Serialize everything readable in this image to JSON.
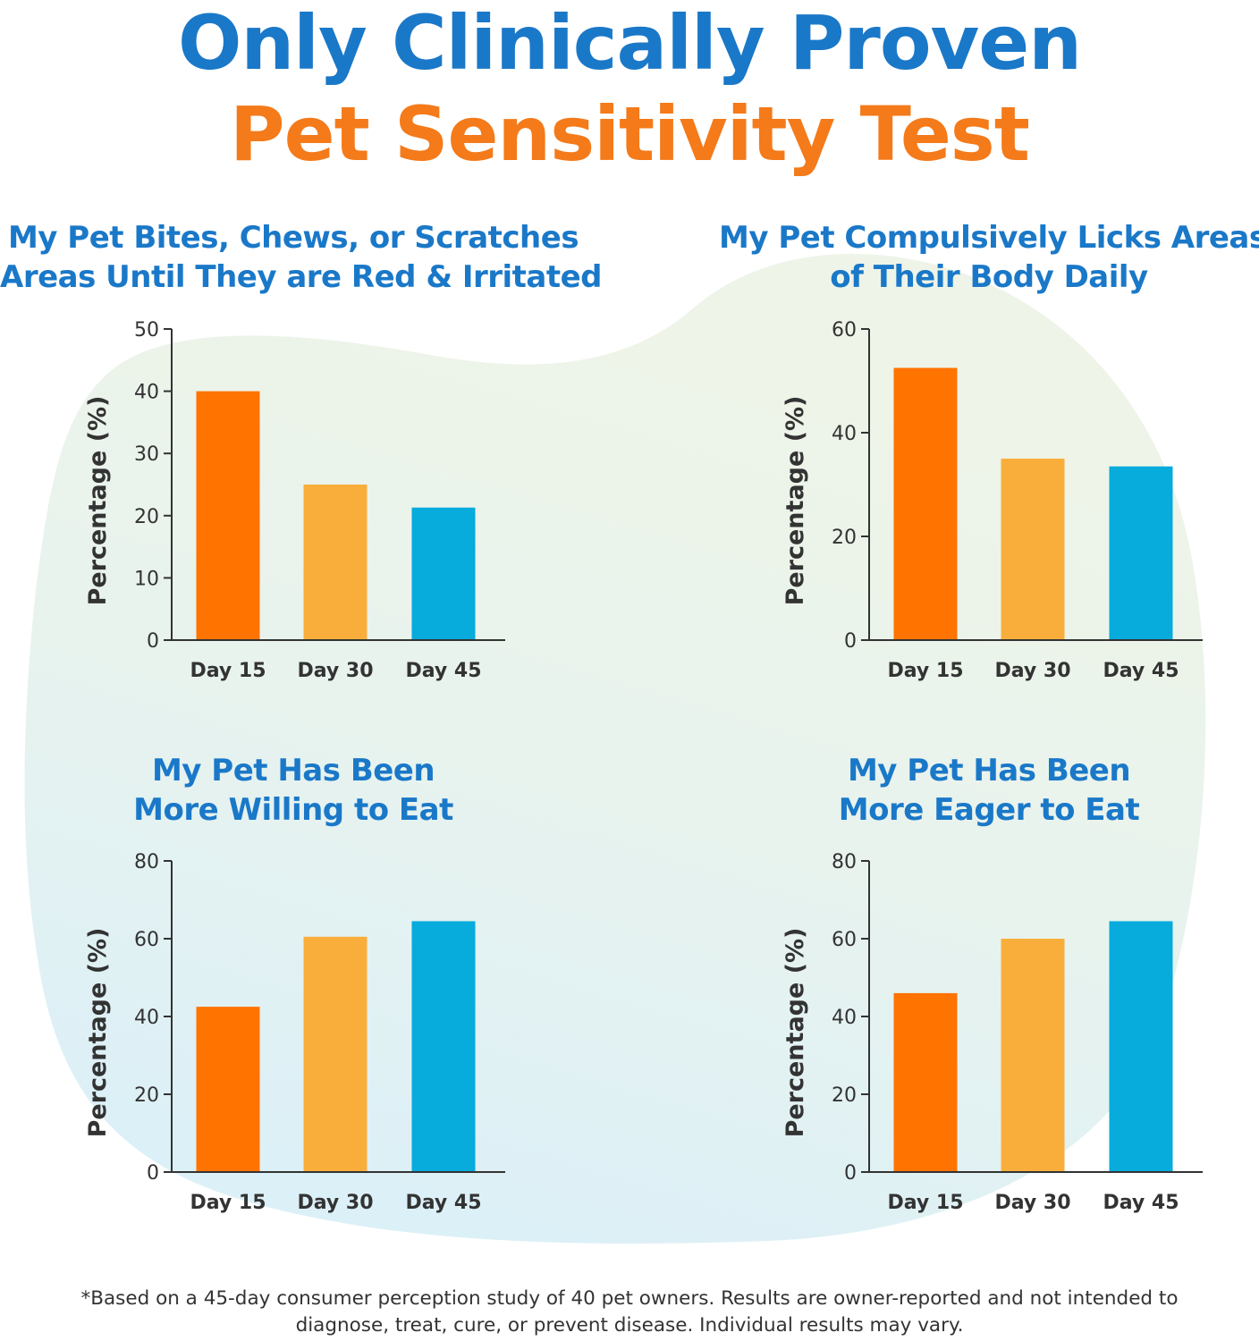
{
  "colors": {
    "headline_blue": "#1a78c8",
    "headline_orange": "#f47a1a",
    "title_blue": "#1a78c8",
    "axis": "#333333",
    "text": "#333333",
    "bar_day15": "#ff7300",
    "bar_day30": "#f9ae3c",
    "bar_day45": "#07abdc",
    "blob_top": "#eef4e8",
    "blob_bottom": "#dcf0f7"
  },
  "headline": {
    "line1": "Only Clinically Proven",
    "line2": "Pet Sensitivity Test"
  },
  "chart_data": [
    {
      "type": "bar",
      "title_lines": [
        "My Pet Bites, Chews, or Scratches",
        "Areas Until They are Red & Irritated"
      ],
      "categories": [
        "Day 15",
        "Day 30",
        "Day 45"
      ],
      "values": [
        40,
        25,
        21.3
      ],
      "ylabel": "Percentage (%)",
      "ylim": [
        0,
        50
      ],
      "yticks": [
        0,
        10,
        20,
        30,
        40,
        50
      ],
      "grid": false,
      "bar_colors": [
        "#ff7300",
        "#f9ae3c",
        "#07abdc"
      ]
    },
    {
      "type": "bar",
      "title_lines": [
        "My Pet Compulsively Licks Areas",
        "of Their Body Daily"
      ],
      "categories": [
        "Day 15",
        "Day 30",
        "Day 45"
      ],
      "values": [
        52.5,
        35,
        33.5
      ],
      "ylabel": "Percentage (%)",
      "ylim": [
        0,
        60
      ],
      "yticks": [
        0,
        20,
        40,
        60
      ],
      "grid": false,
      "bar_colors": [
        "#ff7300",
        "#f9ae3c",
        "#07abdc"
      ]
    },
    {
      "type": "bar",
      "title_lines": [
        "My Pet Has Been",
        "More Willing to Eat"
      ],
      "categories": [
        "Day 15",
        "Day 30",
        "Day 45"
      ],
      "values": [
        42.5,
        60.5,
        64.5
      ],
      "ylabel": "Percentage (%)",
      "ylim": [
        0,
        80
      ],
      "yticks": [
        0,
        20,
        40,
        60,
        80
      ],
      "grid": false,
      "bar_colors": [
        "#ff7300",
        "#f9ae3c",
        "#07abdc"
      ]
    },
    {
      "type": "bar",
      "title_lines": [
        "My Pet Has Been",
        "More Eager to Eat"
      ],
      "categories": [
        "Day 15",
        "Day 30",
        "Day 45"
      ],
      "values": [
        46,
        60,
        64.5
      ],
      "ylabel": "Percentage (%)",
      "ylim": [
        0,
        80
      ],
      "yticks": [
        0,
        20,
        40,
        60,
        80
      ],
      "grid": false,
      "bar_colors": [
        "#ff7300",
        "#f9ae3c",
        "#07abdc"
      ]
    }
  ],
  "footnote": {
    "line1": "*Based on a 45-day consumer perception study of 40 pet owners. Results are owner-reported and not intended to",
    "line2": "diagnose, treat, cure, or prevent disease. Individual results may vary."
  }
}
